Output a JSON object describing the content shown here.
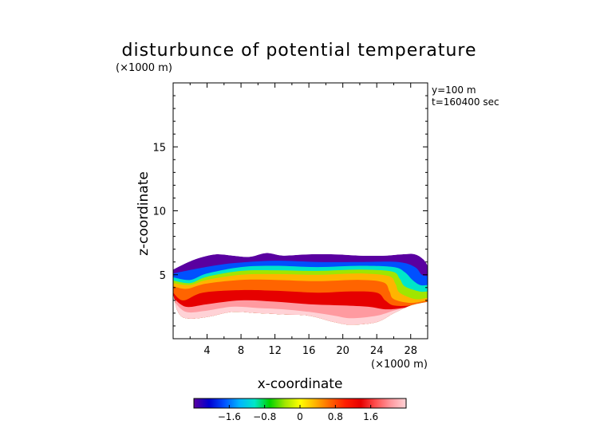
{
  "chart_data": {
    "type": "heatmap",
    "title": "disturbunce of potential temperature",
    "xlabel": "x-coordinate",
    "ylabel": "z-coordinate",
    "x_unit": "(×1000 m)",
    "y_unit": "(×1000 m)",
    "annotations": [
      "y=100 m",
      "t=160400 sec"
    ],
    "xlim": [
      0,
      30
    ],
    "ylim": [
      0,
      20
    ],
    "x_ticks": [
      4,
      8,
      12,
      16,
      20,
      24,
      28
    ],
    "y_ticks": [
      5,
      10,
      15
    ],
    "colorbar": {
      "ticks": [
        -1.6,
        -0.8,
        0,
        0.8,
        1.6
      ],
      "tick_labels": [
        "−1.6",
        "−0.8",
        "0",
        "0.8",
        "1.6"
      ],
      "range": [
        -2.4,
        2.4
      ],
      "colors": [
        "#5a00a0",
        "#0000d0",
        "#0050ff",
        "#00b4ff",
        "#00e6c8",
        "#00d200",
        "#a0e600",
        "#ffff00",
        "#ffb400",
        "#ff6400",
        "#ff1e00",
        "#e60000",
        "#ff5050",
        "#ff9aa0",
        "#ffd2d6"
      ]
    },
    "field": {
      "top_boundary": [
        [
          0.0,
          5.4
        ],
        [
          1.5,
          5.9
        ],
        [
          3,
          6.3
        ],
        [
          5,
          6.6
        ],
        [
          7,
          6.5
        ],
        [
          9,
          6.4
        ],
        [
          11,
          6.7
        ],
        [
          13,
          6.5
        ],
        [
          16,
          6.6
        ],
        [
          19,
          6.6
        ],
        [
          22,
          6.5
        ],
        [
          25,
          6.5
        ],
        [
          27,
          6.6
        ],
        [
          28.5,
          6.6
        ],
        [
          29.5,
          6.2
        ],
        [
          30,
          5.7
        ]
      ],
      "bottom_boundary": [
        [
          0.0,
          3.6
        ],
        [
          0.5,
          2.2
        ],
        [
          1.5,
          1.6
        ],
        [
          4,
          1.7
        ],
        [
          7,
          2.1
        ],
        [
          10,
          2.0
        ],
        [
          13,
          1.9
        ],
        [
          16,
          1.8
        ],
        [
          19,
          1.3
        ],
        [
          21,
          1.1
        ],
        [
          24,
          1.3
        ],
        [
          26,
          2.0
        ],
        [
          28,
          2.6
        ],
        [
          30,
          2.9
        ]
      ],
      "layers": [
        {
          "value": -1.6,
          "line": [
            [
              0,
              5.1
            ],
            [
              3,
              5.5
            ],
            [
              7,
              5.9
            ],
            [
              12,
              6.1
            ],
            [
              17,
              6.0
            ],
            [
              22,
              6.0
            ],
            [
              26.5,
              6.0
            ],
            [
              28.5,
              5.6
            ],
            [
              29.3,
              5.0
            ],
            [
              30,
              4.9
            ]
          ]
        },
        {
          "value": -1.0,
          "line": [
            [
              0,
              4.8
            ],
            [
              2,
              4.6
            ],
            [
              4,
              5.1
            ],
            [
              8,
              5.6
            ],
            [
              12,
              5.7
            ],
            [
              17,
              5.6
            ],
            [
              22,
              5.7
            ],
            [
              26,
              5.6
            ],
            [
              27.3,
              5.2
            ],
            [
              28.2,
              4.6
            ],
            [
              29.1,
              4.2
            ],
            [
              30,
              4.2
            ]
          ]
        },
        {
          "value": -0.4,
          "line": [
            [
              0,
              4.55
            ],
            [
              2,
              4.35
            ],
            [
              4,
              4.85
            ],
            [
              8,
              5.3
            ],
            [
              12,
              5.35
            ],
            [
              17,
              5.3
            ],
            [
              22,
              5.4
            ],
            [
              25.8,
              5.25
            ],
            [
              26.7,
              4.7
            ],
            [
              27.3,
              4.1
            ],
            [
              29,
              3.7
            ],
            [
              30,
              3.7
            ]
          ]
        },
        {
          "value": 0.2,
          "line": [
            [
              0,
              4.35
            ],
            [
              2,
              4.2
            ],
            [
              4,
              4.6
            ],
            [
              8,
              5.0
            ],
            [
              12,
              5.05
            ],
            [
              17,
              5.0
            ],
            [
              22,
              5.1
            ],
            [
              25.4,
              4.9
            ],
            [
              26.2,
              4.3
            ],
            [
              26.7,
              3.6
            ],
            [
              28.5,
              3.1
            ],
            [
              30,
              3.2
            ]
          ]
        },
        {
          "value": 0.8,
          "line": [
            [
              0,
              4.1
            ],
            [
              1.6,
              3.9
            ],
            [
              3.8,
              4.3
            ],
            [
              8,
              4.6
            ],
            [
              12,
              4.6
            ],
            [
              17,
              4.5
            ],
            [
              22,
              4.6
            ],
            [
              24.8,
              4.4
            ],
            [
              25.5,
              3.7
            ],
            [
              26,
              3.1
            ],
            [
              28,
              2.8
            ],
            [
              30,
              3.0
            ]
          ]
        },
        {
          "value": 1.4,
          "line": [
            [
              0,
              3.6
            ],
            [
              1.2,
              3.0
            ],
            [
              3.5,
              3.6
            ],
            [
              8,
              3.8
            ],
            [
              12,
              3.75
            ],
            [
              17,
              3.6
            ],
            [
              21,
              3.7
            ],
            [
              24,
              3.6
            ],
            [
              25,
              3.0
            ],
            [
              26,
              2.6
            ],
            [
              28,
              2.6
            ],
            [
              30,
              2.9
            ]
          ]
        },
        {
          "value": 2.0,
          "line": [
            [
              0,
              3.2
            ],
            [
              1.5,
              2.5
            ],
            [
              4,
              2.7
            ],
            [
              8,
              3.0
            ],
            [
              12,
              2.9
            ],
            [
              16,
              2.7
            ],
            [
              20,
              2.6
            ],
            [
              23,
              2.5
            ],
            [
              25,
              2.3
            ],
            [
              27,
              2.4
            ],
            [
              30,
              2.8
            ]
          ]
        },
        {
          "value": 2.4,
          "line": [
            [
              0,
              3.0
            ],
            [
              1.5,
              2.1
            ],
            [
              4,
              2.2
            ],
            [
              7,
              2.5
            ],
            [
              10,
              2.4
            ],
            [
              13,
              2.3
            ],
            [
              16,
              2.1
            ],
            [
              19,
              1.8
            ],
            [
              21,
              1.6
            ],
            [
              24,
              1.8
            ],
            [
              26,
              2.2
            ],
            [
              28,
              2.5
            ],
            [
              30,
              2.8
            ]
          ]
        }
      ]
    }
  }
}
